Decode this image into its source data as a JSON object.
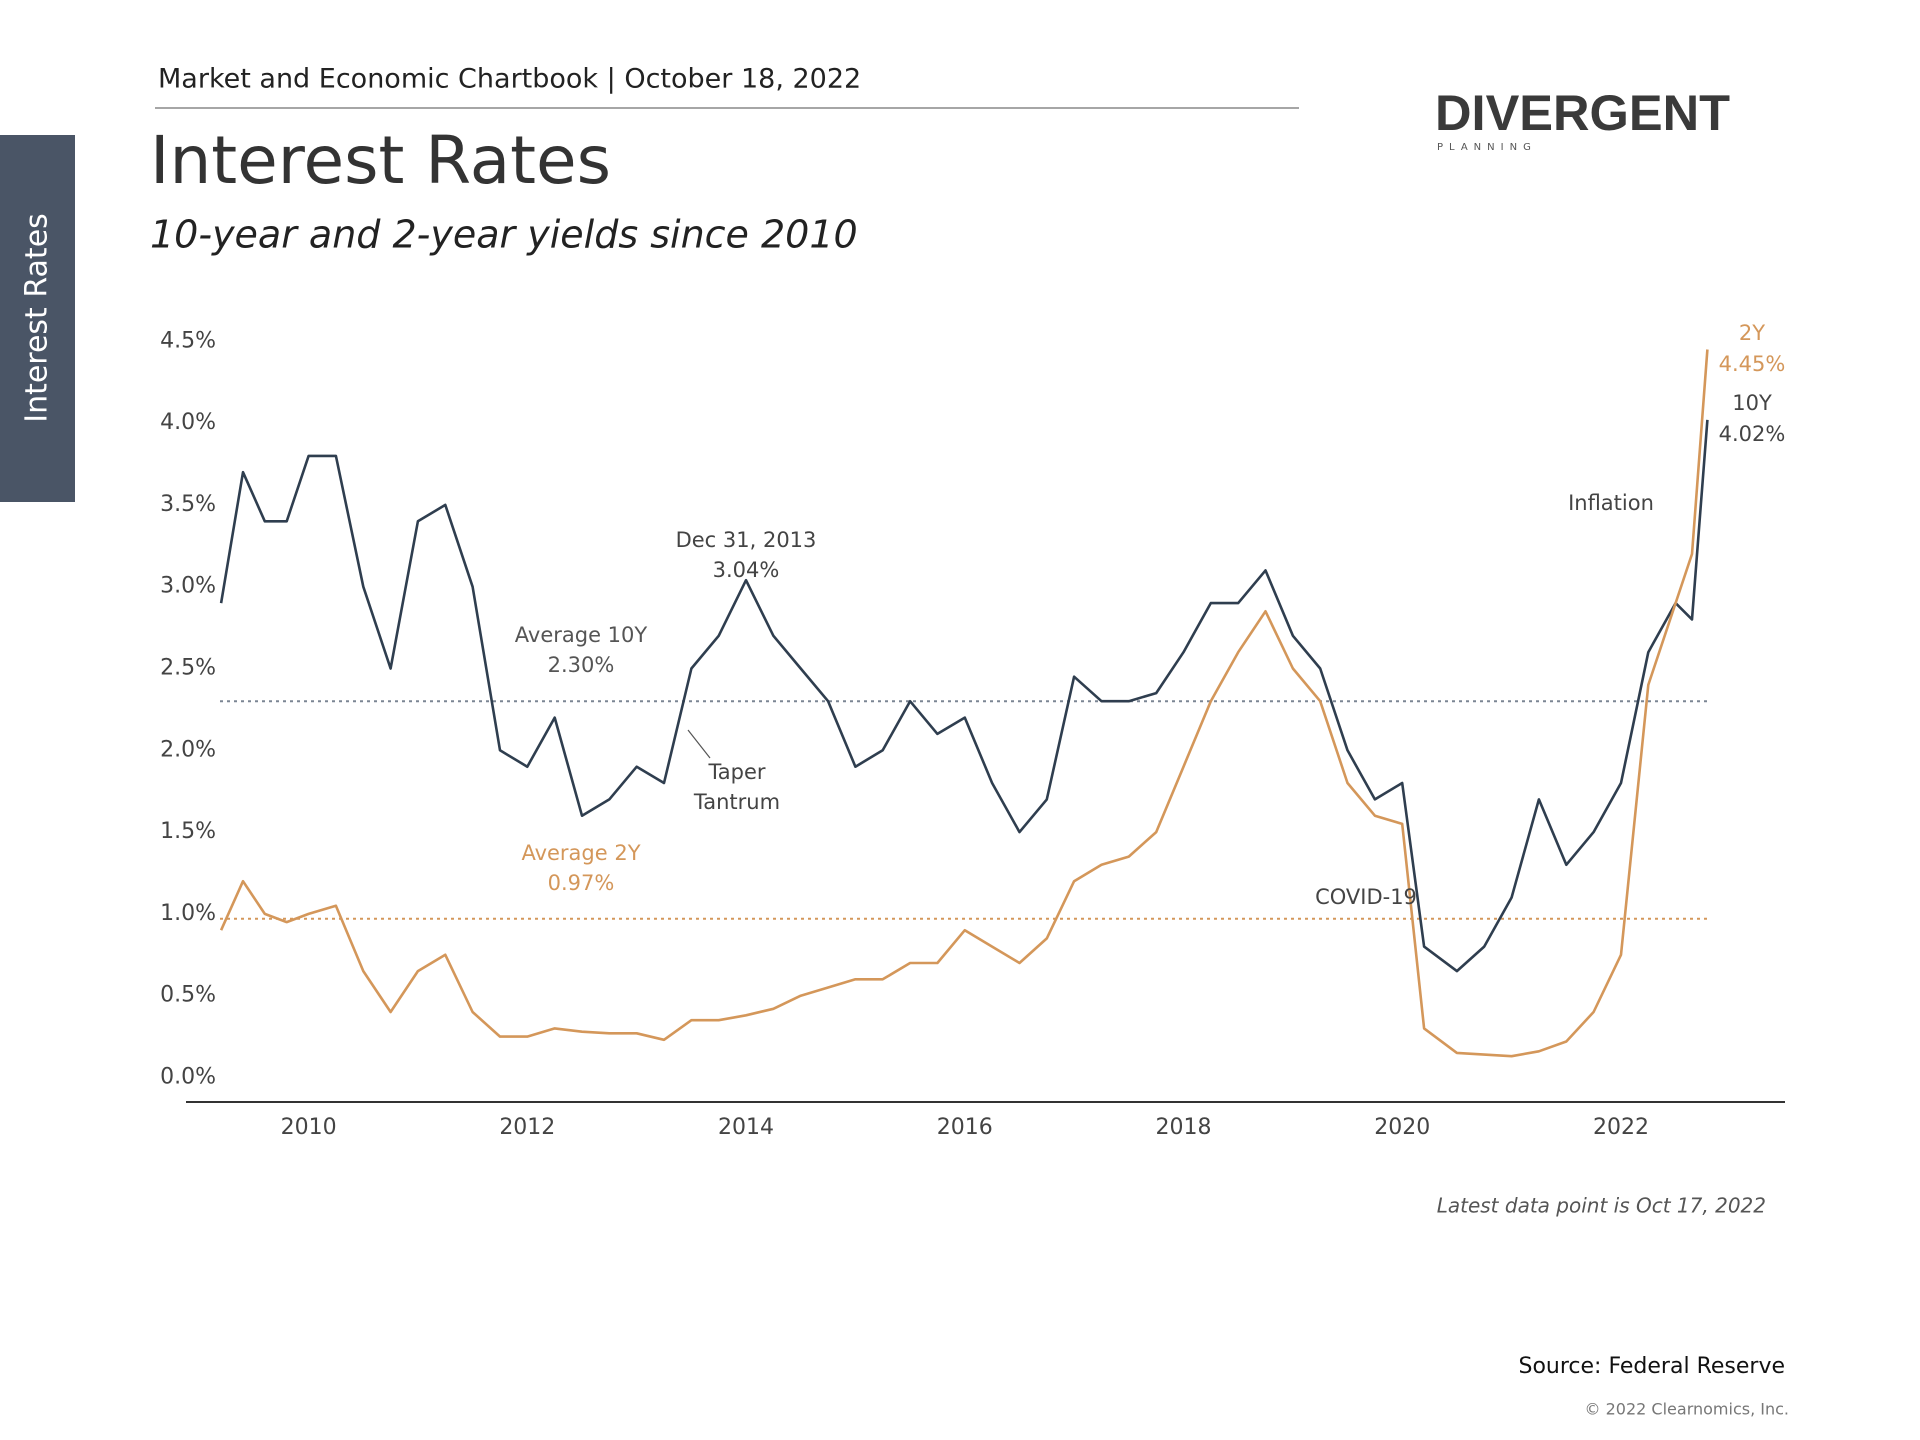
{
  "header": "Market and Economic Chartbook | October 18, 2022",
  "side_tab": "Interest Rates",
  "logo": {
    "name": "DIVERGENT",
    "tagline": "PLANNING"
  },
  "chart_data": {
    "type": "line",
    "title": "Interest Rates",
    "subtitle": "10-year and 2-year yields since 2010",
    "x": [
      2009.2,
      2009.4,
      2009.6,
      2009.8,
      2010.0,
      2010.25,
      2010.5,
      2010.75,
      2011.0,
      2011.25,
      2011.5,
      2011.75,
      2012.0,
      2012.25,
      2012.5,
      2012.75,
      2013.0,
      2013.25,
      2013.5,
      2013.75,
      2014.0,
      2014.25,
      2014.5,
      2014.75,
      2015.0,
      2015.25,
      2015.5,
      2015.75,
      2016.0,
      2016.25,
      2016.5,
      2016.75,
      2017.0,
      2017.25,
      2017.5,
      2017.75,
      2018.0,
      2018.25,
      2018.5,
      2018.75,
      2019.0,
      2019.25,
      2019.5,
      2019.75,
      2020.0,
      2020.2,
      2020.5,
      2020.75,
      2021.0,
      2021.25,
      2021.5,
      2021.75,
      2022.0,
      2022.25,
      2022.5,
      2022.65,
      2022.79
    ],
    "series": [
      {
        "name": "10Y",
        "color": "#2f3e4f",
        "values": [
          2.9,
          3.7,
          3.4,
          3.4,
          3.8,
          3.8,
          3.0,
          2.5,
          3.4,
          3.5,
          3.0,
          2.0,
          1.9,
          2.2,
          1.6,
          1.7,
          1.9,
          1.8,
          2.5,
          2.7,
          3.04,
          2.7,
          2.5,
          2.3,
          1.9,
          2.0,
          2.3,
          2.1,
          2.2,
          1.8,
          1.5,
          1.7,
          2.45,
          2.3,
          2.3,
          2.35,
          2.6,
          2.9,
          2.9,
          3.1,
          2.7,
          2.5,
          2.0,
          1.7,
          1.8,
          0.8,
          0.65,
          0.8,
          1.1,
          1.7,
          1.3,
          1.5,
          1.8,
          2.6,
          2.9,
          2.8,
          4.02
        ],
        "value_labels": [
          null,
          null,
          null,
          null,
          null,
          null,
          null,
          null,
          null,
          null,
          null,
          null,
          null,
          null,
          null,
          null,
          null,
          null,
          null,
          null,
          null,
          null,
          null,
          null,
          null,
          null,
          null,
          null,
          null,
          null,
          null,
          null,
          null,
          null,
          null,
          null,
          null,
          null,
          null,
          null,
          null,
          null,
          null,
          null,
          null,
          null,
          null,
          null,
          null,
          null,
          null,
          null,
          null,
          null,
          null,
          null,
          "4.02%"
        ]
      },
      {
        "name": "2Y",
        "color": "#d4975a",
        "values": [
          0.9,
          1.2,
          1.0,
          0.95,
          1.0,
          1.05,
          0.65,
          0.4,
          0.65,
          0.75,
          0.4,
          0.25,
          0.25,
          0.3,
          0.28,
          0.27,
          0.27,
          0.23,
          0.35,
          0.35,
          0.38,
          0.42,
          0.5,
          0.55,
          0.6,
          0.6,
          0.7,
          0.7,
          0.9,
          0.8,
          0.7,
          0.85,
          1.2,
          1.3,
          1.35,
          1.5,
          1.9,
          2.3,
          2.6,
          2.85,
          2.5,
          2.3,
          1.8,
          1.6,
          1.55,
          0.3,
          0.15,
          0.14,
          0.13,
          0.16,
          0.22,
          0.4,
          0.75,
          2.4,
          2.9,
          3.2,
          4.45
        ],
        "value_labels": [
          null,
          null,
          null,
          null,
          null,
          null,
          null,
          null,
          null,
          null,
          null,
          null,
          null,
          null,
          null,
          null,
          null,
          null,
          null,
          null,
          null,
          null,
          null,
          null,
          null,
          null,
          null,
          null,
          null,
          null,
          null,
          null,
          null,
          null,
          null,
          null,
          null,
          null,
          null,
          null,
          null,
          null,
          null,
          null,
          null,
          null,
          null,
          null,
          null,
          null,
          null,
          null,
          null,
          null,
          null,
          null,
          "4.45%"
        ]
      }
    ],
    "reference_lines": [
      {
        "label": "Average 10Y",
        "value": 2.3,
        "value_label": "2.30%",
        "color": "#7b8593"
      },
      {
        "label": "Average 2Y",
        "value": 0.97,
        "value_label": "0.97%",
        "color": "#d4975a"
      }
    ],
    "annotations": [
      {
        "lines": [
          "Dec 31, 2013"
        ],
        "value": 3.04,
        "value_label": "3.04%"
      },
      {
        "lines": [
          "Taper",
          "Tantrum"
        ]
      },
      {
        "lines": [
          "COVID-19"
        ]
      },
      {
        "lines": [
          "Inflation"
        ]
      }
    ],
    "xlim": [
      2009.19,
      2023.5
    ],
    "xticks": [
      2010,
      2012,
      2014,
      2016,
      2018,
      2020,
      2022
    ],
    "ylim": [
      -0.15,
      4.6
    ],
    "yticks": [
      {
        "value": 0,
        "label": "0.0%"
      },
      {
        "value": 0.5,
        "label": "0.5%"
      },
      {
        "value": 1,
        "label": "1.0%"
      },
      {
        "value": 1.5,
        "label": "1.5%"
      },
      {
        "value": 2,
        "label": "2.0%"
      },
      {
        "value": 2.5,
        "label": "2.5%"
      },
      {
        "value": 3,
        "label": "3.0%"
      },
      {
        "value": 3.5,
        "label": "3.5%"
      },
      {
        "value": 4,
        "label": "4.0%"
      },
      {
        "value": 4.5,
        "label": "4.5%"
      }
    ],
    "grid": false,
    "note": "Latest data point is Oct 17, 2022",
    "source": "Source: Federal Reserve",
    "copyright": "© 2022 Clearnomics, Inc."
  }
}
